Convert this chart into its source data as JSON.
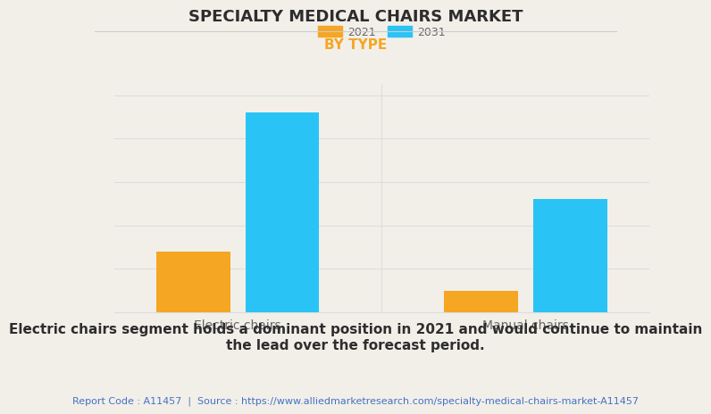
{
  "title": "SPECIALTY MEDICAL CHAIRS MARKET",
  "subtitle": "BY TYPE",
  "categories": [
    "Electric chairs",
    "Manual chairs"
  ],
  "series": [
    {
      "label": "2021",
      "color": "#F5A623",
      "values": [
        0.28,
        0.1
      ]
    },
    {
      "label": "2031",
      "color": "#29C4F5",
      "values": [
        0.92,
        0.52
      ]
    }
  ],
  "ylim": [
    0,
    1.05
  ],
  "background_color": "#F2EFE9",
  "plot_bg_color": "#F2EFE9",
  "title_fontsize": 13,
  "subtitle_fontsize": 11,
  "subtitle_color": "#F5A623",
  "annotation_text": "Electric chairs segment holds a dominant position in 2021 and would continue to maintain\nthe lead over the forecast period.",
  "footer_text": "Report Code : A11457  |  Source : https://www.alliedmarketresearch.com/specialty-medical-chairs-market-A11457",
  "bar_width": 0.18,
  "grid_color": "#DDDDDD",
  "tick_label_color": "#666666",
  "legend_fontsize": 9,
  "annotation_fontsize": 11,
  "footer_fontsize": 8,
  "footer_color": "#4472C4",
  "divider_color": "#CCCCCC"
}
